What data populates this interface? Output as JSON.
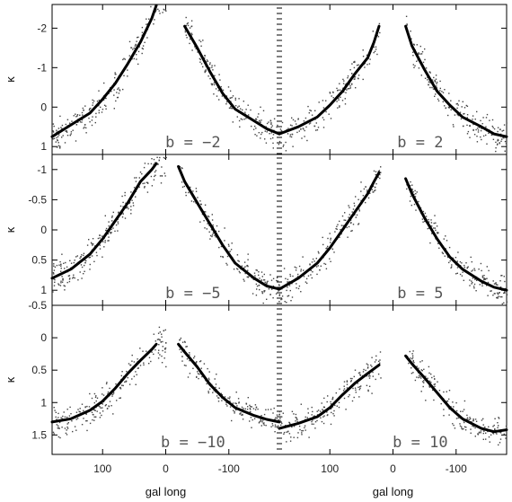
{
  "chart_data": {
    "type": "scatter",
    "xlabel": "gal long",
    "ylabel": "κ",
    "x_axis": {
      "direction": "reversed (galactic longitude, decreasing to the right)",
      "half_range": [
        180,
        -180
      ],
      "ticks": [
        100,
        0,
        -100
      ],
      "ticklabels": [
        "100",
        "0",
        "-100"
      ]
    },
    "rows": [
      {
        "ylim": [
          1.2,
          -2.6
        ],
        "yticks": [
          -2,
          -1,
          0,
          1
        ],
        "yticklabels": [
          "-2",
          "-1",
          "0",
          "1"
        ],
        "panels": [
          {
            "label": "b = −2",
            "gap": [
              0,
              -30
            ],
            "points": [
              [
                180,
                0.75
              ],
              [
                150,
                0.45
              ],
              [
                120,
                0.15
              ],
              [
                100,
                -0.2
              ],
              [
                80,
                -0.6
              ],
              [
                60,
                -1.1
              ],
              [
                40,
                -1.65
              ],
              [
                22,
                -2.25
              ],
              [
                15,
                -2.6
              ],
              [
                -20,
                -2.35
              ],
              [
                -30,
                -2.05
              ],
              [
                -50,
                -1.5
              ],
              [
                -70,
                -0.9
              ],
              [
                -90,
                -0.35
              ],
              [
                -110,
                0.05
              ],
              [
                -140,
                0.35
              ],
              [
                -160,
                0.55
              ],
              [
                -180,
                0.68
              ]
            ]
          },
          {
            "label": "b = 2",
            "gap": [
              20,
              -20
            ],
            "points": [
              [
                180,
                0.68
              ],
              [
                150,
                0.5
              ],
              [
                120,
                0.25
              ],
              [
                100,
                -0.05
              ],
              [
                80,
                -0.4
              ],
              [
                60,
                -0.85
              ],
              [
                40,
                -1.25
              ],
              [
                30,
                -1.65
              ],
              [
                22,
                -2.05
              ],
              [
                -20,
                -2.05
              ],
              [
                -30,
                -1.55
              ],
              [
                -50,
                -0.95
              ],
              [
                -70,
                -0.4
              ],
              [
                -90,
                -0.05
              ],
              [
                -110,
                0.25
              ],
              [
                -140,
                0.5
              ],
              [
                -160,
                0.68
              ],
              [
                -180,
                0.75
              ]
            ]
          }
        ]
      },
      {
        "ylim": [
          1.25,
          -1.25
        ],
        "yticks": [
          -1,
          -0.5,
          0,
          0.5,
          1
        ],
        "yticklabels": [
          "-1",
          "-0.5",
          "0",
          "0.5",
          "1"
        ],
        "panels": [
          {
            "label": "b = −5",
            "gap": [
              0,
              -20
            ],
            "points": [
              [
                180,
                0.8
              ],
              [
                150,
                0.65
              ],
              [
                120,
                0.4
              ],
              [
                100,
                0.15
              ],
              [
                80,
                -0.15
              ],
              [
                60,
                -0.45
              ],
              [
                40,
                -0.8
              ],
              [
                22,
                -1.0
              ],
              [
                15,
                -1.1
              ],
              [
                -20,
                -1.05
              ],
              [
                -30,
                -0.8
              ],
              [
                -50,
                -0.45
              ],
              [
                -70,
                -0.1
              ],
              [
                -90,
                0.25
              ],
              [
                -110,
                0.55
              ],
              [
                -140,
                0.8
              ],
              [
                -160,
                0.93
              ],
              [
                -180,
                0.98
              ]
            ]
          },
          {
            "label": "b = 5",
            "gap": [
              20,
              -20
            ],
            "points": [
              [
                180,
                0.98
              ],
              [
                150,
                0.8
              ],
              [
                120,
                0.55
              ],
              [
                100,
                0.3
              ],
              [
                80,
                0.0
              ],
              [
                60,
                -0.3
              ],
              [
                40,
                -0.6
              ],
              [
                30,
                -0.8
              ],
              [
                22,
                -0.95
              ],
              [
                -20,
                -0.85
              ],
              [
                -30,
                -0.6
              ],
              [
                -50,
                -0.2
              ],
              [
                -70,
                0.15
              ],
              [
                -90,
                0.45
              ],
              [
                -110,
                0.65
              ],
              [
                -140,
                0.85
              ],
              [
                -160,
                0.95
              ],
              [
                -180,
                1.0
              ]
            ]
          }
        ]
      },
      {
        "ylim": [
          1.8,
          -0.5
        ],
        "yticks": [
          -0.5,
          0,
          0.5,
          1,
          1.5
        ],
        "yticklabels": [
          "-0.5",
          "0",
          "0.5",
          "1",
          "1.5"
        ],
        "panels": [
          {
            "label": "b = −10",
            "gap": [
              0,
              -20
            ],
            "points": [
              [
                180,
                1.3
              ],
              [
                150,
                1.25
              ],
              [
                120,
                1.12
              ],
              [
                100,
                0.98
              ],
              [
                80,
                0.78
              ],
              [
                60,
                0.55
              ],
              [
                40,
                0.35
              ],
              [
                22,
                0.18
              ],
              [
                15,
                0.1
              ],
              [
                -20,
                0.1
              ],
              [
                -30,
                0.22
              ],
              [
                -50,
                0.45
              ],
              [
                -70,
                0.72
              ],
              [
                -90,
                0.92
              ],
              [
                -110,
                1.08
              ],
              [
                -140,
                1.2
              ],
              [
                -160,
                1.26
              ],
              [
                -180,
                1.3
              ]
            ]
          },
          {
            "label": "b = 10",
            "gap": [
              20,
              -20
            ],
            "points": [
              [
                180,
                1.4
              ],
              [
                150,
                1.32
              ],
              [
                120,
                1.22
              ],
              [
                100,
                1.08
              ],
              [
                80,
                0.88
              ],
              [
                60,
                0.7
              ],
              [
                40,
                0.55
              ],
              [
                22,
                0.42
              ],
              [
                -20,
                0.28
              ],
              [
                -30,
                0.4
              ],
              [
                -50,
                0.62
              ],
              [
                -70,
                0.85
              ],
              [
                -90,
                1.08
              ],
              [
                -110,
                1.25
              ],
              [
                -140,
                1.4
              ],
              [
                -160,
                1.45
              ],
              [
                -180,
                1.42
              ]
            ]
          }
        ]
      }
    ]
  }
}
